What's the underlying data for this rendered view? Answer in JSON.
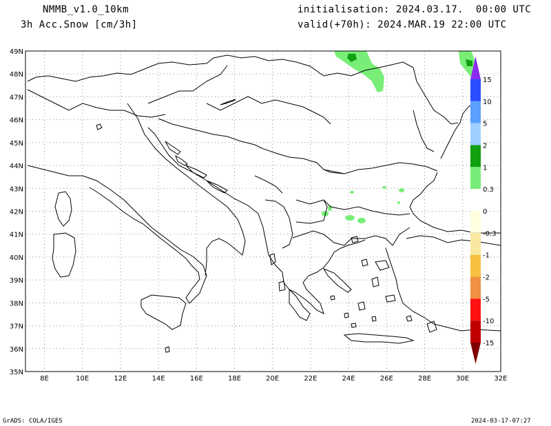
{
  "header": {
    "model": "NMMB_v1.0_10km",
    "variable": "3h Acc.Snow [cm/3h]",
    "init": "initialisation: 2024.03.17.  00:00 UTC",
    "valid": "valid(+70h): 2024.MAR.19 22:00 UTC"
  },
  "map": {
    "lat_labels": [
      "49N",
      "48N",
      "47N",
      "46N",
      "45N",
      "44N",
      "43N",
      "42N",
      "41N",
      "40N",
      "39N",
      "38N",
      "37N",
      "36N",
      "35N"
    ],
    "lon_labels": [
      "8E",
      "10E",
      "12E",
      "14E",
      "16E",
      "18E",
      "20E",
      "22E",
      "24E",
      "26E",
      "28E",
      "30E",
      "32E"
    ],
    "colors": {
      "coast": "#000000",
      "grid": "#8a8a8a",
      "snow_light": "#78ee78",
      "snow_mid": "#10a010"
    }
  },
  "colorbar": {
    "labels": [
      "15",
      "10",
      "5",
      "2",
      "1",
      "0.3",
      "0",
      "-0.3",
      "-1",
      "-2",
      "-5",
      "-10",
      "-15"
    ],
    "colors": [
      "#8c2bf0",
      "#2a4dff",
      "#5aa0ff",
      "#a0d0ff",
      "#10a010",
      "#78ee78",
      "#ffffff",
      "#ffffe0",
      "#f8e8a0",
      "#f6c040",
      "#f09040",
      "#ff1010",
      "#c00000",
      "#800000"
    ]
  },
  "footer": {
    "left": "GrADS: COLA/IGES",
    "right": "2024-03-17-07:27"
  }
}
